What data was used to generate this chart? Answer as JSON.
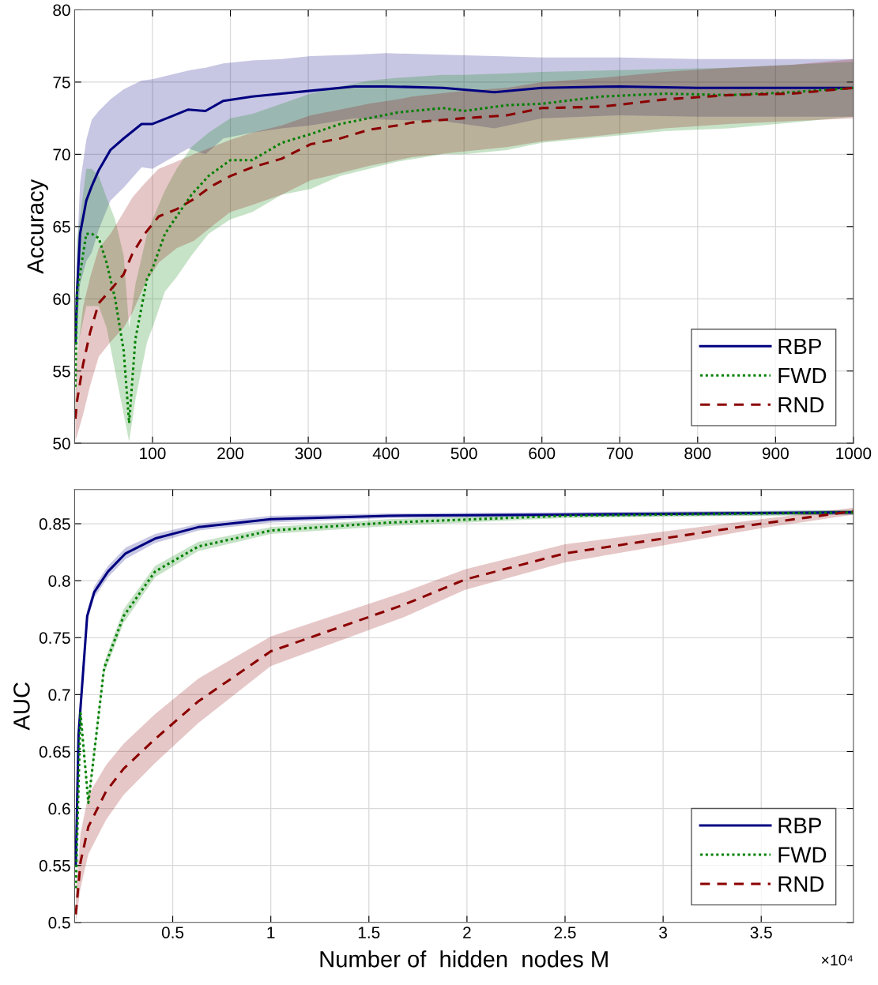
{
  "chart_data": [
    {
      "type": "line",
      "ylabel": "Accuracy",
      "xlim": [
        0,
        1000
      ],
      "ylim": [
        50,
        80
      ],
      "xticks": [
        100,
        200,
        300,
        400,
        500,
        600,
        700,
        800,
        900,
        1000
      ],
      "yticks": [
        50,
        55,
        60,
        65,
        70,
        75,
        80
      ],
      "grid": true,
      "legend": "bottom right",
      "series": [
        {
          "name": "RBP",
          "color": "#000080",
          "line_style": "solid",
          "x": [
            1,
            3,
            7,
            15,
            22,
            31,
            46,
            63,
            86,
            100,
            123,
            146,
            168,
            191,
            228,
            266,
            303,
            359,
            400,
            473,
            539,
            600,
            700,
            800,
            900,
            1000
          ],
          "values": [
            56.9,
            60.4,
            64.5,
            66.8,
            67.8,
            68.9,
            70.3,
            71.1,
            72.1,
            72.1,
            72.6,
            73.1,
            73.0,
            73.7,
            74.0,
            74.2,
            74.4,
            74.7,
            74.7,
            74.6,
            74.3,
            74.6,
            74.7,
            74.6,
            74.6,
            74.6
          ],
          "upper": [
            57.5,
            63,
            68,
            71,
            72.4,
            73,
            73.8,
            74.5,
            75.1,
            75.2,
            75.5,
            75.8,
            76.0,
            76.3,
            76.5,
            76.6,
            76.8,
            76.9,
            77.0,
            76.9,
            76.8,
            76.7,
            76.7,
            76.6,
            76.6,
            76.6
          ],
          "lower": [
            56.3,
            57.8,
            61,
            62.6,
            63.2,
            64.8,
            66.8,
            67.7,
            69.1,
            69,
            69.7,
            70.4,
            70,
            71.1,
            71.5,
            71.8,
            72,
            72.5,
            72.4,
            72.3,
            71.8,
            72.5,
            72.7,
            72.6,
            72.6,
            72.6
          ]
        },
        {
          "name": "FWD",
          "color": "#008000",
          "line_style": "dotted",
          "x": [
            1,
            3,
            15,
            22,
            31,
            41,
            52,
            63,
            70,
            78,
            93,
            100,
            116,
            131,
            150,
            172,
            200,
            228,
            266,
            303,
            341,
            378,
            415,
            473,
            500,
            555,
            600,
            677,
            758,
            840,
            921,
            1000
          ],
          "values": [
            53.9,
            60.4,
            64.5,
            64.5,
            64.2,
            62.5,
            60.0,
            56.4,
            51.4,
            57.2,
            61.4,
            62.1,
            64.5,
            65.7,
            67.2,
            68.5,
            69.6,
            69.6,
            70.8,
            71.4,
            72.1,
            72.5,
            72.9,
            73.2,
            73.0,
            73.4,
            73.5,
            74.0,
            74.2,
            74.1,
            74.3,
            74.6
          ],
          "upper": [
            56,
            64,
            69,
            69,
            68.5,
            67,
            65.5,
            63,
            58,
            61,
            64.5,
            65.5,
            67.5,
            69,
            70.5,
            71.5,
            72.5,
            72.8,
            73.5,
            74.2,
            74.7,
            75.1,
            75.3,
            75.5,
            75.5,
            75.6,
            75.7,
            75.8,
            75.9,
            76.0,
            76.2,
            76.4
          ],
          "lower": [
            51,
            56.5,
            59.5,
            59.5,
            59.5,
            58,
            55,
            52,
            50.1,
            53,
            57,
            58,
            60.5,
            61.5,
            63,
            64.5,
            65.5,
            66,
            67.2,
            67.6,
            68.5,
            69,
            69.5,
            70,
            70,
            70.3,
            70.8,
            71.2,
            71.6,
            71.8,
            72.2,
            72.6
          ]
        },
        {
          "name": "RND",
          "color": "#8b0000",
          "line_style": "dashed",
          "x": [
            1,
            3,
            11,
            20,
            31,
            46,
            63,
            74,
            90,
            108,
            131,
            153,
            176,
            200,
            228,
            266,
            303,
            341,
            378,
            415,
            433,
            500,
            555,
            600,
            677,
            758,
            840,
            921,
            1000
          ],
          "values": [
            51.7,
            52.9,
            55.5,
            57.7,
            59.7,
            60.6,
            61.7,
            63.1,
            64.5,
            65.7,
            66.2,
            66.9,
            67.8,
            68.5,
            69.1,
            69.7,
            70.7,
            71.1,
            71.7,
            72.0,
            72.2,
            72.5,
            72.7,
            73.2,
            73.3,
            73.8,
            74.1,
            74.2,
            74.6
          ],
          "upper": [
            53,
            56,
            59.5,
            61.5,
            63.5,
            64.5,
            66,
            67,
            68,
            69,
            69.5,
            70,
            70.5,
            71,
            71.5,
            72,
            72.7,
            73.1,
            73.5,
            73.8,
            74,
            74.4,
            74.6,
            75,
            75.3,
            75.7,
            76,
            76.2,
            76.6
          ],
          "lower": [
            50.2,
            50.5,
            52,
            54,
            56,
            57,
            58,
            59,
            61,
            62.5,
            63.5,
            64,
            65,
            66,
            66.5,
            67.2,
            68.2,
            68.7,
            69.2,
            69.6,
            69.8,
            70.2,
            70.5,
            70.9,
            71.3,
            71.8,
            72.1,
            72.3,
            72.5
          ]
        }
      ]
    },
    {
      "type": "line",
      "ylabel": "AUC",
      "xlabel": "Number of  hidden  nodes M",
      "annotations": [
        "×10⁴"
      ],
      "xlim": [
        0,
        3.97
      ],
      "ylim": [
        0.5,
        0.88
      ],
      "xticks": [
        0.5,
        1,
        1.5,
        2,
        2.5,
        3,
        3.5
      ],
      "yticks": [
        0.5,
        0.55,
        0.6,
        0.65,
        0.7,
        0.75,
        0.8,
        0.85
      ],
      "grid": true,
      "legend": "bottom right",
      "series": [
        {
          "name": "RBP",
          "color": "#000080",
          "line_style": "solid",
          "x": [
            0.006,
            0.02,
            0.064,
            0.1,
            0.17,
            0.26,
            0.41,
            0.63,
            1.0,
            1.6,
            2.5,
            3.97
          ],
          "values": [
            0.55,
            0.665,
            0.769,
            0.79,
            0.808,
            0.824,
            0.837,
            0.847,
            0.854,
            0.857,
            0.858,
            0.86
          ],
          "upper": [
            0.553,
            0.668,
            0.774,
            0.795,
            0.813,
            0.829,
            0.841,
            0.85,
            0.857,
            0.859,
            0.86,
            0.862
          ],
          "lower": [
            0.547,
            0.662,
            0.764,
            0.785,
            0.803,
            0.819,
            0.833,
            0.844,
            0.851,
            0.855,
            0.856,
            0.858
          ]
        },
        {
          "name": "FWD",
          "color": "#008000",
          "line_style": "dotted",
          "x": [
            0.006,
            0.03,
            0.07,
            0.15,
            0.25,
            0.41,
            0.63,
            1.0,
            1.6,
            2.5,
            3.97
          ],
          "values": [
            0.53,
            0.684,
            0.605,
            0.723,
            0.769,
            0.808,
            0.83,
            0.844,
            0.851,
            0.857,
            0.86
          ],
          "upper": [
            0.534,
            0.688,
            0.609,
            0.728,
            0.775,
            0.813,
            0.834,
            0.847,
            0.854,
            0.859,
            0.862
          ],
          "lower": [
            0.526,
            0.68,
            0.601,
            0.718,
            0.763,
            0.803,
            0.826,
            0.841,
            0.848,
            0.855,
            0.858
          ]
        },
        {
          "name": "RND",
          "color": "#8b0000",
          "line_style": "dashed",
          "x": [
            0.006,
            0.03,
            0.07,
            0.16,
            0.25,
            0.41,
            0.63,
            1.0,
            1.68,
            1.99,
            2.5,
            3.0,
            3.5,
            3.97
          ],
          "values": [
            0.507,
            0.553,
            0.584,
            0.615,
            0.635,
            0.661,
            0.694,
            0.738,
            0.779,
            0.801,
            0.824,
            0.837,
            0.85,
            0.861
          ],
          "upper": [
            0.525,
            0.578,
            0.612,
            0.638,
            0.657,
            0.683,
            0.714,
            0.751,
            0.79,
            0.81,
            0.832,
            0.843,
            0.854,
            0.864
          ],
          "lower": [
            0.5,
            0.53,
            0.56,
            0.59,
            0.612,
            0.64,
            0.675,
            0.725,
            0.768,
            0.792,
            0.816,
            0.831,
            0.846,
            0.858
          ]
        }
      ]
    }
  ]
}
